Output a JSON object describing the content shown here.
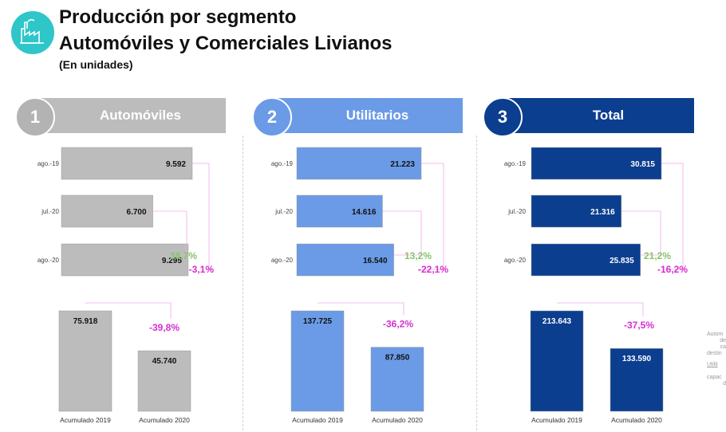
{
  "header": {
    "title_line1": "Producción por segmento",
    "title_line2": "Automóviles y Comerciales Livianos",
    "subtitle": "(En unidades)"
  },
  "colors": {
    "auto": "#bcbcbc",
    "auto_circle": "#b3b3b3",
    "util": "#6b9be6",
    "total": "#0b3e8f",
    "growth": "#88c46a",
    "decline": "#d62fd0",
    "connector": "#f4a6ee",
    "logo": "#2ec6c8"
  },
  "panels": [
    {
      "number": "1",
      "name": "Automóviles",
      "growth_label": "38,7%",
      "decline_label": "-3,1%",
      "cumulative_change_label": "-39,8%"
    },
    {
      "number": "2",
      "name": "Utilitarios",
      "growth_label": "13,2%",
      "decline_label": "-22,1%",
      "cumulative_change_label": "-36,2%"
    },
    {
      "number": "3",
      "name": "Total",
      "growth_label": "21,2%",
      "decline_label": "-16,2%",
      "cumulative_change_label": "-37,5%"
    }
  ],
  "side_text": [
    "Autom",
    "de",
    "ca",
    "destin",
    "Utilit",
    "capac",
    "d"
  ],
  "chart_data": [
    {
      "type": "bar",
      "title": "Automóviles",
      "monthly": {
        "categories": [
          "ago.-19",
          "jul.-20",
          "ago.-20"
        ],
        "values": [
          9592,
          6700,
          9295
        ],
        "labels": [
          "9.592",
          "6.700",
          "9.295"
        ]
      },
      "cumulative": {
        "categories": [
          "Acumulado 2019",
          "Acumulado 2020"
        ],
        "values": [
          75918,
          45740
        ],
        "labels": [
          "75.918",
          "45.740"
        ]
      }
    },
    {
      "type": "bar",
      "title": "Utilitarios",
      "monthly": {
        "categories": [
          "ago.-19",
          "jul.-20",
          "ago.-20"
        ],
        "values": [
          21223,
          14616,
          16540
        ],
        "labels": [
          "21.223",
          "14.616",
          "16.540"
        ]
      },
      "cumulative": {
        "categories": [
          "Acumulado 2019",
          "Acumulado 2020"
        ],
        "values": [
          137725,
          87850
        ],
        "labels": [
          "137.725",
          "87.850"
        ]
      }
    },
    {
      "type": "bar",
      "title": "Total",
      "monthly": {
        "categories": [
          "ago.-19",
          "jul.-20",
          "ago.-20"
        ],
        "values": [
          30815,
          21316,
          25835
        ],
        "labels": [
          "30.815",
          "21.316",
          "25.835"
        ]
      },
      "cumulative": {
        "categories": [
          "Acumulado 2019",
          "Acumulado 2020"
        ],
        "values": [
          213643,
          133590
        ],
        "labels": [
          "213.643",
          "133.590"
        ]
      }
    }
  ]
}
